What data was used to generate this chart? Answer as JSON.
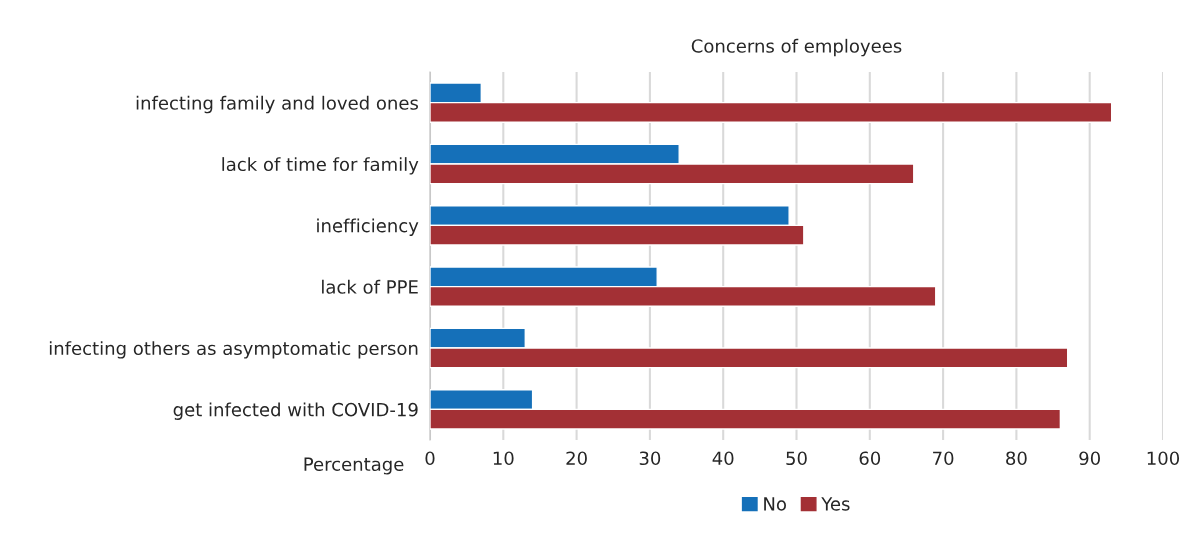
{
  "chart_data": {
    "type": "bar",
    "orientation": "horizontal",
    "title": "Concerns of employees",
    "xlabel": "Percentage",
    "categories": [
      "infecting family and loved ones",
      "lack of time for family",
      "inefficiency",
      "lack of PPE",
      "infecting others as asymptomatic person",
      "get infected with COVID-19"
    ],
    "series": [
      {
        "name": "No",
        "color": "#1570b9",
        "values": [
          7,
          34,
          49,
          31,
          13,
          14
        ]
      },
      {
        "name": "Yes",
        "color": "#a33035",
        "values": [
          93,
          66,
          51,
          69,
          87,
          86
        ]
      }
    ],
    "xlim": [
      0,
      100
    ],
    "xticks": [
      0,
      10,
      20,
      30,
      40,
      50,
      60,
      70,
      80,
      90,
      100
    ],
    "grid": "x",
    "legend": "bottom"
  }
}
